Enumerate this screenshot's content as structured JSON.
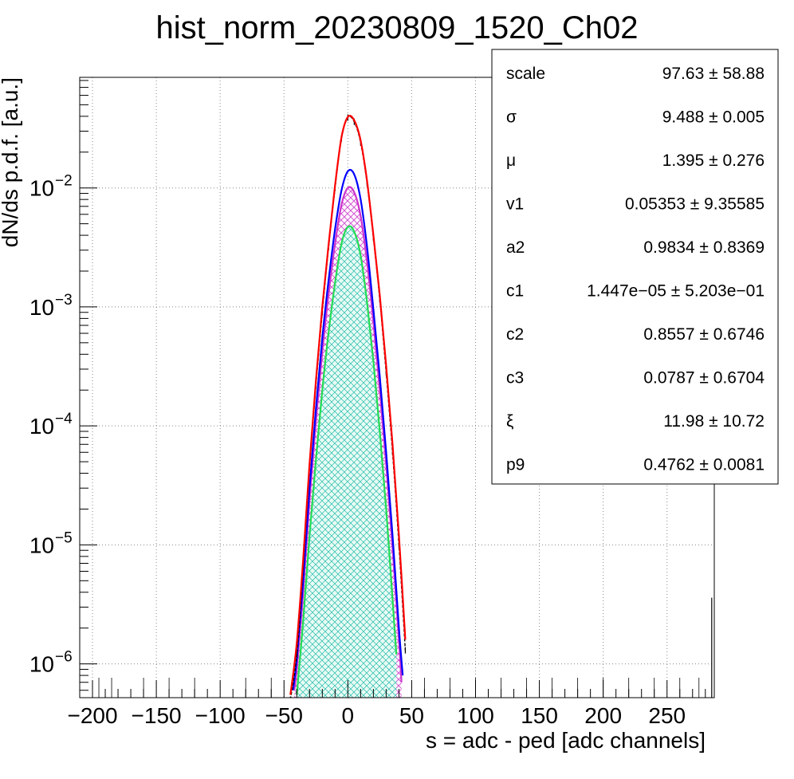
{
  "chart_data": {
    "type": "line",
    "title": "hist_norm_20230809_1520_Ch02",
    "xlabel": "s = adc - ped [adc channels]",
    "ylabel": "dN/ds p.d.f. [a.u.]",
    "y_scale": "log",
    "xlim": [
      -210,
      287
    ],
    "ylim": [
      5.2e-07,
      0.085
    ],
    "grid": true,
    "x_ticks": [
      {
        "v": -200,
        "label": "−200"
      },
      {
        "v": -150,
        "label": "−150"
      },
      {
        "v": -100,
        "label": "−100"
      },
      {
        "v": -50,
        "label": "−50"
      },
      {
        "v": 0,
        "label": "0"
      },
      {
        "v": 50,
        "label": "50"
      },
      {
        "v": 100,
        "label": "100"
      },
      {
        "v": 150,
        "label": "150"
      },
      {
        "v": 200,
        "label": "200"
      },
      {
        "v": 250,
        "label": "250"
      }
    ],
    "y_ticks": [
      {
        "v": 1e-06,
        "base": "10",
        "exp": "−6"
      },
      {
        "v": 1e-05,
        "base": "10",
        "exp": "−5"
      },
      {
        "v": 0.0001,
        "base": "10",
        "exp": "−4"
      },
      {
        "v": 0.001,
        "base": "10",
        "exp": "−3"
      },
      {
        "v": 0.01,
        "base": "10",
        "exp": "−2"
      }
    ],
    "series": [
      {
        "color": "#000000",
        "style": "histogram",
        "x": [
          -45,
          -40,
          -35,
          -30,
          -25,
          -20,
          -15,
          -10,
          -5,
          0,
          5,
          10,
          15,
          20,
          25,
          30,
          35,
          40,
          45
        ],
        "y": [
          5e-07,
          1.2e-06,
          6.5e-06,
          4.5e-05,
          0.00022,
          0.0009,
          0.0032,
          0.01,
          0.026,
          0.039,
          0.036,
          0.024,
          0.011,
          0.0038,
          0.00115,
          0.00028,
          6e-05,
          1e-05,
          1.3e-06
        ]
      },
      {
        "color": "#ff0000",
        "style": "line",
        "x": [
          -45,
          -40,
          -35,
          -30,
          -25,
          -20,
          -15,
          -10,
          -5,
          0,
          5,
          10,
          15,
          20,
          25,
          30,
          35,
          40,
          45
        ],
        "y": [
          5.5e-07,
          1.5e-06,
          7.5e-06,
          4.8e-05,
          0.00024,
          0.001,
          0.0034,
          0.0105,
          0.0265,
          0.0395,
          0.037,
          0.025,
          0.0115,
          0.004,
          0.00125,
          0.00032,
          7e-05,
          1.2e-05,
          1.6e-06
        ]
      },
      {
        "color": "#0000ff",
        "style": "line",
        "x": [
          -43,
          -40,
          -35,
          -30,
          -25,
          -20,
          -15,
          -10,
          -5,
          0,
          5,
          10,
          15,
          20,
          25,
          30,
          35,
          40,
          43
        ],
        "y": [
          6e-07,
          1.1e-06,
          5e-06,
          3e-05,
          0.00014,
          0.00055,
          0.0017,
          0.0045,
          0.0095,
          0.0138,
          0.013,
          0.008,
          0.0032,
          0.00095,
          0.00026,
          6e-05,
          1.2e-05,
          2e-06,
          8e-07
        ]
      },
      {
        "color": "#cc00cc",
        "style": "hatched",
        "x": [
          -42,
          -40,
          -35,
          -30,
          -25,
          -20,
          -15,
          -10,
          -5,
          0,
          5,
          10,
          15,
          20,
          25,
          30,
          35,
          40,
          42
        ],
        "y": [
          6e-07,
          9e-07,
          4e-06,
          2.4e-05,
          0.00011,
          0.00042,
          0.0013,
          0.0034,
          0.0072,
          0.01,
          0.0092,
          0.0058,
          0.0024,
          0.00075,
          0.0002,
          4.8e-05,
          9.5e-06,
          1.6e-06,
          7e-07
        ]
      },
      {
        "color": "#00cc44",
        "style": "hatched",
        "x": [
          -40,
          -35,
          -30,
          -25,
          -20,
          -15,
          -10,
          -5,
          0,
          5,
          10,
          15,
          20,
          25,
          30,
          35,
          38
        ],
        "y": [
          5.5e-07,
          2.3e-06,
          1.2e-05,
          5.2e-05,
          0.0002,
          0.00062,
          0.0016,
          0.0034,
          0.0047,
          0.0043,
          0.0027,
          0.0011,
          0.00035,
          9e-05,
          2e-05,
          3.5e-06,
          1.2e-06
        ]
      }
    ]
  },
  "stats": [
    {
      "name": "scale",
      "value": "97.63 ± 58.88"
    },
    {
      "name": "σ",
      "value": "9.488 ± 0.005"
    },
    {
      "name": "μ",
      "value": "1.395 ± 0.276"
    },
    {
      "name": "v1",
      "value": "0.05353 ± 9.35585"
    },
    {
      "name": "a2",
      "value": "0.9834 ± 0.8369"
    },
    {
      "name": "c1",
      "value": "1.447e−05 ± 5.203e−01"
    },
    {
      "name": "c2",
      "value": "0.8557 ± 0.6746"
    },
    {
      "name": "c3",
      "value": "0.0787 ± 0.6704"
    },
    {
      "name": "ξ",
      "value": "11.98 ± 10.72"
    },
    {
      "name": "p9",
      "value": "0.4762 ± 0.0081"
    }
  ]
}
